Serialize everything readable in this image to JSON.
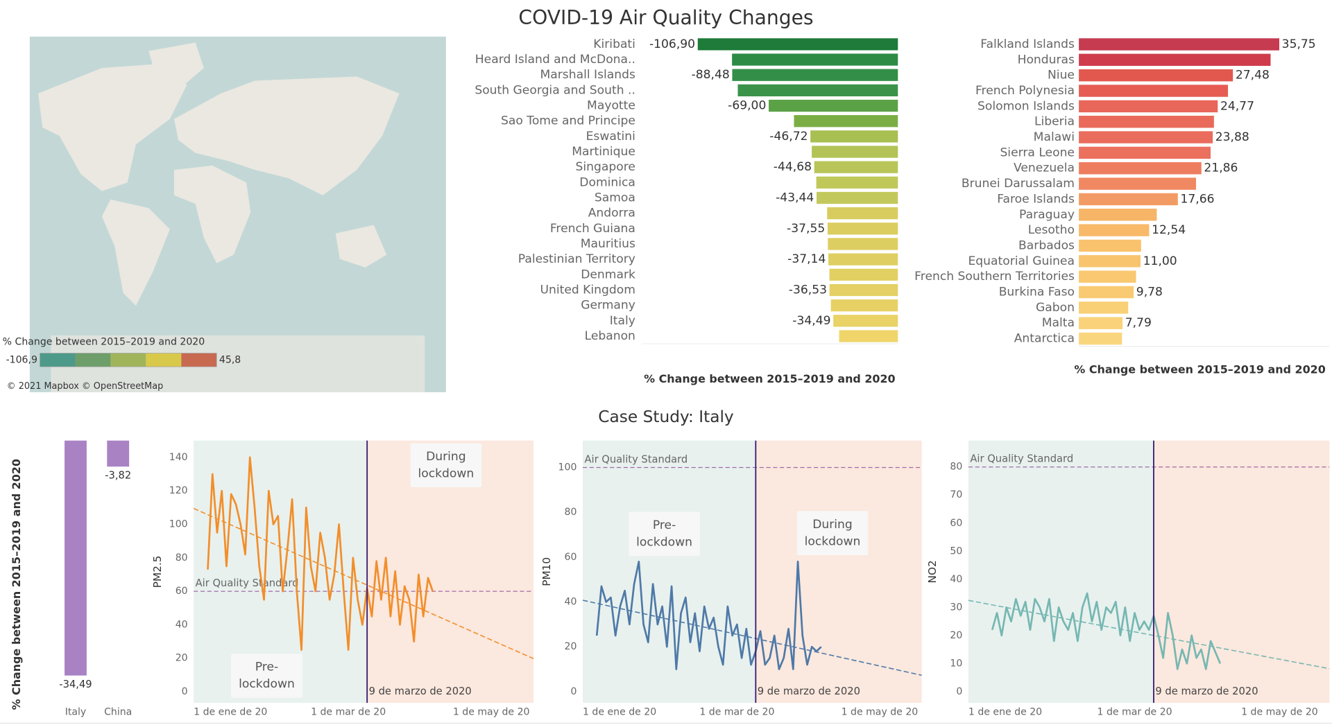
{
  "dashboard": {
    "title": "COVID-19 Air Quality Changes",
    "subtitle": "Case Study: Italy"
  },
  "chart_data": [
    {
      "type": "map",
      "legend_title": "% Change between 2015–2019 and 2020",
      "legend_min": {
        "value": -106.9,
        "label": "-106,9"
      },
      "legend_max": {
        "value": 45.8,
        "label": "45,8"
      },
      "legend_colors": [
        "#4e9a8a",
        "#6e9f6a",
        "#a0b55a",
        "#d8c94a",
        "#c86a50"
      ],
      "attribution": "© 2021 Mapbox © OpenStreetMap"
    },
    {
      "type": "bar",
      "orientation": "horizontal",
      "x_label": "% Change between 2015–2019 and 2020",
      "categories": [
        "Kiribati",
        "Heard Island and McDona..",
        "Marshall Islands",
        "South Georgia and South ..",
        "Mayotte",
        "Sao Tome and Principe",
        "Eswatini",
        "Martinique",
        "Singapore",
        "Dominica",
        "Samoa",
        "Andorra",
        "French Guiana",
        "Mauritius",
        "Palestinian Territory",
        "Denmark",
        "United Kingdom",
        "Germany",
        "Italy",
        "Lebanon"
      ],
      "values": [
        -106.9,
        -88.6,
        -88.48,
        -85.5,
        -69.0,
        -55.5,
        -46.72,
        -46.0,
        -44.68,
        -43.6,
        -43.44,
        -37.8,
        -37.55,
        -37.4,
        -37.14,
        -36.6,
        -36.53,
        -35.8,
        -34.49,
        -31.4
      ],
      "value_labels": [
        "-106,90",
        null,
        "-88,48",
        null,
        "-69,00",
        null,
        "-46,72",
        null,
        "-44,68",
        null,
        "-43,44",
        null,
        "-37,55",
        null,
        "-37,14",
        null,
        "-36,53",
        null,
        "-34,49",
        null
      ],
      "colors": [
        "#1e7b3a",
        "#2e8b45",
        "#338f47",
        "#3b9349",
        "#5ba246",
        "#7aae45",
        "#a8bf52",
        "#b3c356",
        "#b9c558",
        "#c0c85a",
        "#c3c85c",
        "#d9cc5f",
        "#dbcd60",
        "#ddce61",
        "#dfcf62",
        "#e3d063",
        "#e4d064",
        "#e7d165",
        "#e9d266",
        "#f0d56b"
      ],
      "xlim": [
        -137,
        0
      ]
    },
    {
      "type": "bar",
      "orientation": "horizontal",
      "x_label": "% Change between 2015–2019 and 2020",
      "categories": [
        "Falkland Islands",
        "Honduras",
        "Niue",
        "French Polynesia",
        "Solomon Islands",
        "Liberia",
        "Malawi",
        "Sierra Leone",
        "Venezuela",
        "Brunei Darussalam",
        "Faroe Islands",
        "Paraguay",
        "Lesotho",
        "Barbados",
        "Equatorial Guinea",
        "French Southern Territories",
        "Burkina Faso",
        "Gabon",
        "Malta",
        "Antarctica"
      ],
      "values": [
        35.75,
        34.2,
        27.48,
        26.6,
        24.77,
        24.1,
        23.88,
        23.5,
        21.86,
        20.9,
        17.66,
        13.9,
        12.54,
        11.1,
        11.0,
        10.2,
        9.78,
        8.8,
        7.79,
        7.7
      ],
      "value_labels": [
        "35,75",
        null,
        "27,48",
        null,
        "24,77",
        null,
        "23,88",
        null,
        "21,86",
        null,
        "17,66",
        null,
        "12,54",
        null,
        "11,00",
        null,
        "9,78",
        null,
        "7,79",
        null
      ],
      "colors": [
        "#c63b50",
        "#cf3c4c",
        "#e2584f",
        "#e65c53",
        "#e8665a",
        "#e96a5b",
        "#ea6c5c",
        "#eb705e",
        "#ee7d60",
        "#f08862",
        "#f39b64",
        "#f7b567",
        "#f8ba69",
        "#f9c26d",
        "#f9c46e",
        "#f9c870",
        "#f9ca72",
        "#f9d076",
        "#f9d27a",
        "#f9d67e"
      ],
      "xlim": [
        0,
        44.7
      ]
    },
    {
      "type": "bar",
      "orientation": "vertical",
      "y_label": "% Change between 2015–2019 and 2020",
      "categories": [
        "Italy",
        "China"
      ],
      "values": [
        -34.49,
        -3.82
      ],
      "value_labels": [
        "-34,49",
        "-3,82"
      ],
      "color": "#a982c4",
      "ylim": [
        -38.5,
        0
      ]
    },
    {
      "type": "line",
      "y_label": "PM2.5",
      "color": "#f28e2b",
      "x": [
        0,
        2,
        4,
        6,
        8,
        10,
        12,
        14,
        16,
        18,
        20,
        22,
        24,
        26,
        28,
        30,
        32,
        34,
        36,
        38,
        40,
        42,
        44,
        46,
        48,
        50,
        52,
        54,
        56,
        58,
        60,
        62,
        64,
        66,
        68,
        70,
        72,
        74,
        76,
        78,
        80,
        82,
        84,
        86,
        88,
        90,
        92,
        94,
        96
      ],
      "values": [
        73,
        130,
        95,
        120,
        75,
        118,
        112,
        100,
        82,
        140,
        110,
        75,
        55,
        120,
        100,
        105,
        60,
        85,
        115,
        60,
        25,
        110,
        75,
        60,
        95,
        80,
        55,
        70,
        100,
        60,
        25,
        80,
        55,
        40,
        62,
        45,
        78,
        55,
        80,
        45,
        72,
        40,
        63,
        55,
        30,
        70,
        45,
        68,
        60
      ],
      "xlim": [
        -6,
        139
      ],
      "xticks": [
        {
          "value": 0,
          "label": "1 de ene de 20"
        },
        {
          "value": 60,
          "label": "1 de mar de 20"
        },
        {
          "value": 121,
          "label": "1 de may de 20"
        }
      ],
      "ylim": [
        -6.6,
        150
      ],
      "yticks": [
        0,
        20,
        40,
        60,
        80,
        100,
        120,
        140
      ],
      "lockdown": {
        "value": 68,
        "label": "9 de marzo de 2020"
      },
      "reference_line": {
        "value": 60,
        "label": "Air Quality Standard"
      },
      "annotations": [
        [
          "Pre-",
          "lockdown"
        ],
        [
          "During",
          "lockdown"
        ]
      ]
    },
    {
      "type": "line",
      "y_label": "PM10",
      "color": "#4e79a7",
      "x": [
        0,
        2,
        4,
        6,
        8,
        10,
        12,
        14,
        16,
        18,
        20,
        22,
        24,
        26,
        28,
        30,
        32,
        34,
        36,
        38,
        40,
        42,
        44,
        46,
        48,
        50,
        52,
        54,
        56,
        58,
        60,
        62,
        64,
        66,
        68,
        70,
        72,
        74,
        76,
        78,
        80,
        82,
        84,
        86,
        88,
        90,
        92,
        94,
        96
      ],
      "values": [
        25,
        47,
        40,
        42,
        25,
        38,
        45,
        30,
        48,
        58,
        30,
        22,
        48,
        30,
        38,
        20,
        47,
        10,
        35,
        42,
        22,
        35,
        18,
        38,
        28,
        33,
        20,
        12,
        38,
        25,
        30,
        15,
        28,
        12,
        18,
        27,
        12,
        15,
        25,
        10,
        15,
        28,
        10,
        58,
        25,
        12,
        20,
        18,
        20
      ],
      "xlim": [
        -6,
        139
      ],
      "xticks": [
        {
          "value": 0,
          "label": "1 de ene de 20"
        },
        {
          "value": 60,
          "label": "1 de mar de 20"
        },
        {
          "value": 121,
          "label": "1 de may de 20"
        }
      ],
      "ylim": [
        -5,
        112
      ],
      "yticks": [
        0,
        20,
        40,
        60,
        80,
        100
      ],
      "lockdown": {
        "value": 68,
        "label": "9 de marzo de 2020"
      },
      "reference_line": {
        "value": 100,
        "label": "Air Quality Standard"
      },
      "annotations": [
        [
          "Pre-",
          "lockdown"
        ],
        [
          "During",
          "lockdown"
        ]
      ]
    },
    {
      "type": "line",
      "y_label": "NO2",
      "color": "#76b7b2",
      "x": [
        0,
        2,
        4,
        6,
        8,
        10,
        12,
        14,
        16,
        18,
        20,
        22,
        24,
        26,
        28,
        30,
        32,
        34,
        36,
        38,
        40,
        42,
        44,
        46,
        48,
        50,
        52,
        54,
        56,
        58,
        60,
        62,
        64,
        66,
        68,
        70,
        72,
        74,
        76,
        78,
        80,
        82,
        84,
        86,
        88,
        90,
        92,
        94,
        96
      ],
      "values": [
        22,
        28,
        20,
        30,
        25,
        33,
        27,
        32,
        22,
        33,
        30,
        25,
        33,
        18,
        30,
        25,
        22,
        28,
        18,
        30,
        35,
        25,
        32,
        22,
        30,
        28,
        32,
        20,
        30,
        18,
        28,
        22,
        25,
        22,
        27,
        20,
        12,
        28,
        20,
        8,
        15,
        10,
        20,
        12,
        15,
        8,
        18,
        14,
        10
      ],
      "xlim": [
        -10,
        142
      ],
      "xticks": [
        {
          "value": 0,
          "label": "1 de ene de 20"
        },
        {
          "value": 60,
          "label": "1 de mar de 20"
        },
        {
          "value": 121,
          "label": "1 de may de 20"
        }
      ],
      "ylim": [
        -4,
        89.4
      ],
      "yticks": [
        0,
        10,
        20,
        30,
        40,
        50,
        60,
        70,
        80
      ],
      "lockdown": {
        "value": 68,
        "label": "9 de marzo de 2020"
      },
      "reference_line": {
        "value": 80,
        "label": "Air Quality Standard"
      },
      "annotations": []
    }
  ]
}
